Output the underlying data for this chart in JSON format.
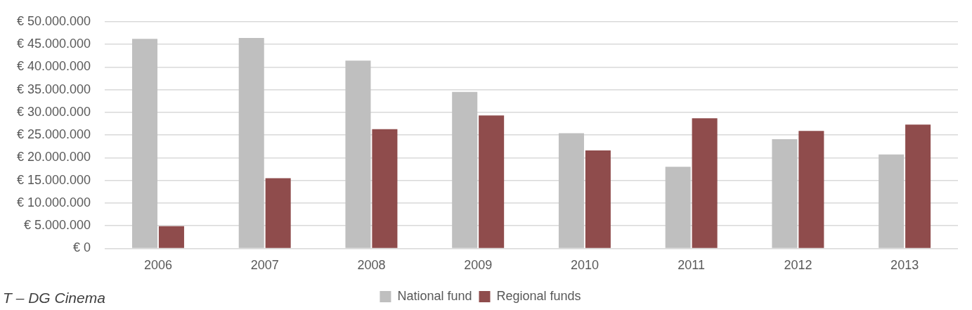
{
  "chart_data": {
    "type": "bar",
    "categories": [
      "2006",
      "2007",
      "2008",
      "2009",
      "2010",
      "2011",
      "2012",
      "2013"
    ],
    "series": [
      {
        "name": "National fund",
        "color": "#bfbfbf",
        "values": [
          46200000,
          46400000,
          41400000,
          34500000,
          25400000,
          18000000,
          24100000,
          20700000
        ]
      },
      {
        "name": "Regional funds",
        "color": "#8f4c4c",
        "values": [
          4900000,
          15500000,
          26300000,
          29300000,
          21600000,
          28700000,
          25900000,
          27300000
        ]
      }
    ],
    "ylim": [
      0,
      50000000
    ],
    "yticks": [
      {
        "value": 0,
        "label": "€ 0"
      },
      {
        "value": 5000000,
        "label": "€ 5.000.000"
      },
      {
        "value": 10000000,
        "label": "€ 10.000.000"
      },
      {
        "value": 15000000,
        "label": "€ 15.000.000"
      },
      {
        "value": 20000000,
        "label": "€ 20.000.000"
      },
      {
        "value": 25000000,
        "label": "€ 25.000.000"
      },
      {
        "value": 30000000,
        "label": "€ 30.000.000"
      },
      {
        "value": 35000000,
        "label": "€ 35.000.000"
      },
      {
        "value": 40000000,
        "label": "€ 40.000.000"
      },
      {
        "value": 45000000,
        "label": "€ 45.000.000"
      },
      {
        "value": 50000000,
        "label": "€ 50.000.000"
      }
    ],
    "grid": "y",
    "legend": "bottom",
    "annotations": [
      "T – DG Cinema"
    ]
  }
}
